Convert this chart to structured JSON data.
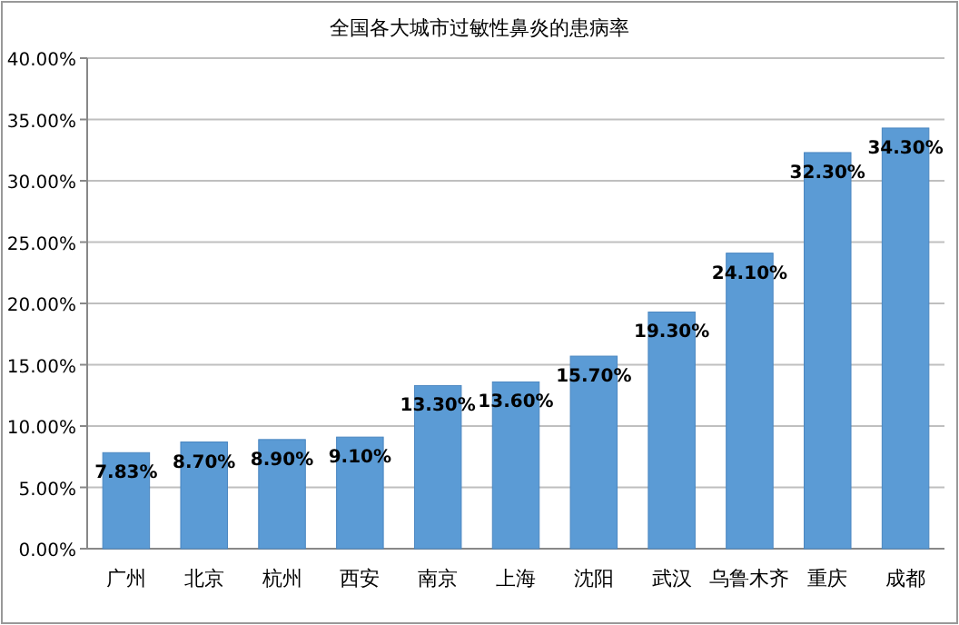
{
  "chart_data": {
    "type": "bar",
    "title": "全国各大城市过敏性鼻炎的患病率",
    "categories": [
      "广州",
      "北京",
      "杭州",
      "西安",
      "南京",
      "上海",
      "沈阳",
      "武汉",
      "乌鲁木齐",
      "重庆",
      "成都"
    ],
    "values": [
      7.83,
      8.7,
      8.9,
      9.1,
      13.3,
      13.6,
      15.7,
      19.3,
      24.1,
      32.3,
      34.3
    ],
    "value_labels": [
      "7.83%",
      "8.70%",
      "8.90%",
      "9.10%",
      "13.30%",
      "13.60%",
      "15.70%",
      "19.30%",
      "24.10%",
      "32.30%",
      "34.30%"
    ],
    "color": "#5b9bd5",
    "ylim": [
      0,
      40
    ],
    "yticks": [
      {
        "value": 0,
        "label": "0.00%"
      },
      {
        "value": 5,
        "label": "5.00%"
      },
      {
        "value": 10,
        "label": "10.00%"
      },
      {
        "value": 15,
        "label": "15.00%"
      },
      {
        "value": 20,
        "label": "20.00%"
      },
      {
        "value": 25,
        "label": "25.00%"
      },
      {
        "value": 30,
        "label": "30.00%"
      },
      {
        "value": 35,
        "label": "35.00%"
      },
      {
        "value": 40,
        "label": "40.00%"
      }
    ],
    "grid": "y"
  }
}
